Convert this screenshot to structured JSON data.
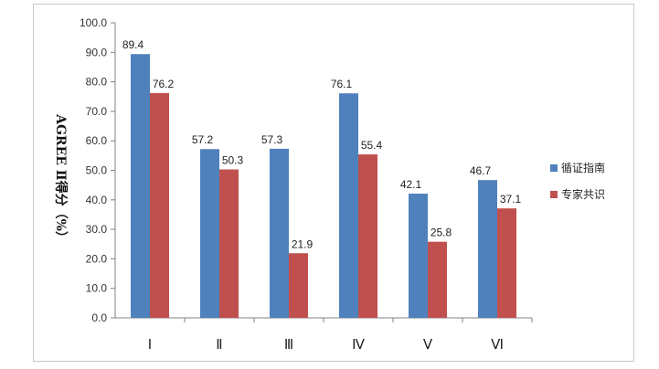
{
  "chart_data": {
    "type": "bar",
    "ylabel": "AGREE Ⅱ得分（%）",
    "ylim": [
      0,
      100
    ],
    "yticks": [
      "0.0",
      "10.0",
      "20.0",
      "30.0",
      "40.0",
      "50.0",
      "60.0",
      "70.0",
      "80.0",
      "90.0",
      "100.0"
    ],
    "categories": [
      "Ⅰ",
      "Ⅱ",
      "Ⅲ",
      "Ⅳ",
      "Ⅴ",
      "Ⅵ"
    ],
    "series": [
      {
        "name": "循证指南",
        "color": "#4f81bd",
        "values": [
          89.4,
          57.2,
          57.3,
          76.1,
          42.1,
          46.7
        ]
      },
      {
        "name": "专家共识",
        "color": "#c0504d",
        "values": [
          76.2,
          50.3,
          21.9,
          55.4,
          25.8,
          37.1
        ]
      }
    ],
    "legend_position": "right",
    "grid": false
  }
}
